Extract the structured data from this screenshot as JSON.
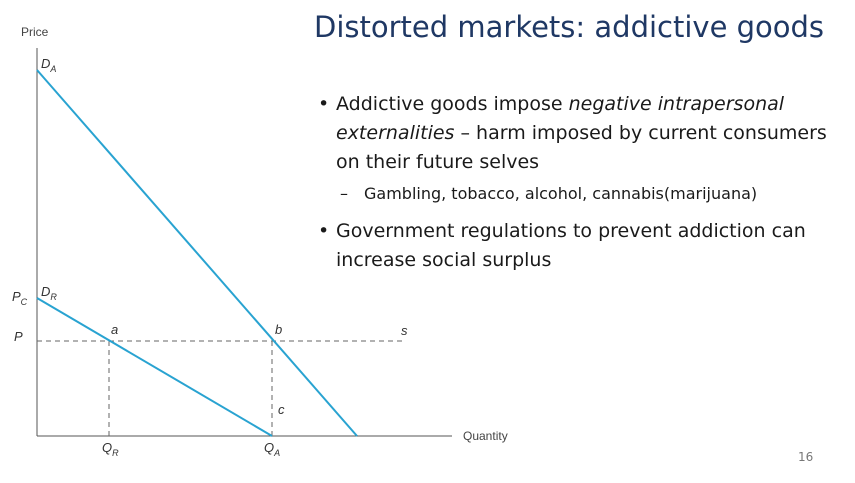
{
  "title": "Distorted markets: addictive goods",
  "page_number": "16",
  "diagram": {
    "y_axis_label": "Price",
    "x_axis_label": "Quantity",
    "demand_addicted": {
      "main": "D",
      "sub": "A"
    },
    "demand_rational": {
      "main": "D",
      "sub": "R"
    },
    "price_rational": {
      "main": "P",
      "sub": "C"
    },
    "price": "P",
    "point_a": "a",
    "point_b": "b",
    "point_c": "c",
    "supply": "s",
    "quantity_rational": {
      "main": "Q",
      "sub": "R"
    },
    "quantity_addicted": {
      "main": "Q",
      "sub": "A"
    },
    "curve_color": "#29a3d1"
  },
  "bullets": {
    "item1": {
      "part1": "Addictive goods impose ",
      "emphasis": "negative intrapersonal externalities",
      "part2": " – harm imposed by current consumers on their future selves"
    },
    "sub1": "Gambling, tobacco, alcohol, cannabis(marijuana)",
    "item2": "Government regulations to prevent addiction can increase social surplus"
  }
}
